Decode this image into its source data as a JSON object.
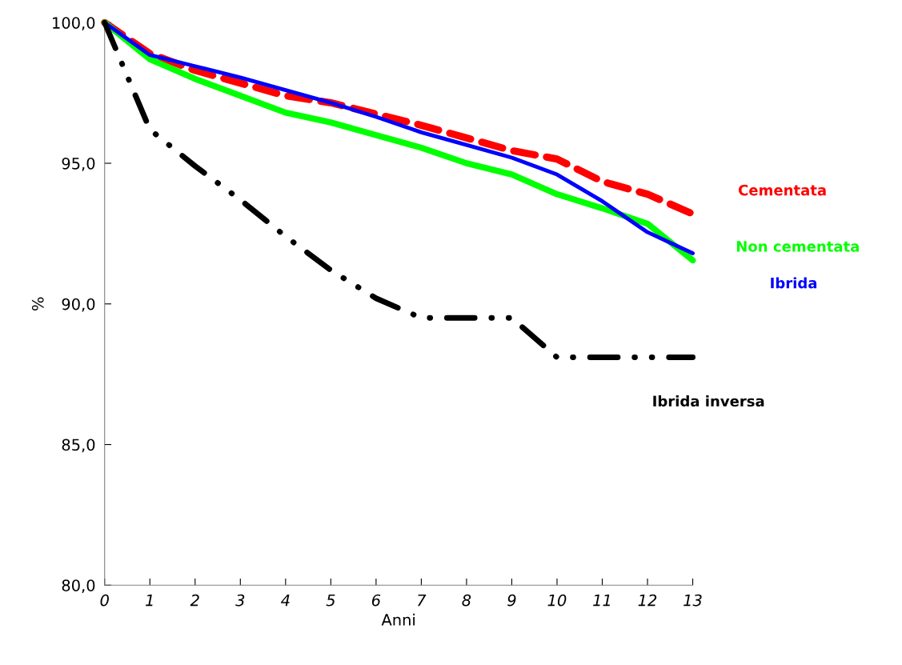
{
  "chart_data": {
    "type": "line",
    "xlabel": "Anni",
    "ylabel": "%",
    "x": [
      0,
      1,
      2,
      3,
      4,
      5,
      6,
      7,
      8,
      9,
      10,
      11,
      12,
      13
    ],
    "series": [
      {
        "name": "Cementata",
        "color": "#ff0000",
        "line_style": "dashed",
        "values": [
          100,
          98.9,
          98.3,
          97.85,
          97.4,
          97.15,
          96.75,
          96.35,
          95.9,
          95.45,
          95.15,
          94.35,
          93.9,
          93.2
        ]
      },
      {
        "name": "Non cementata",
        "color": "#00ff00",
        "line_style": "solid",
        "values": [
          100,
          98.7,
          98.0,
          97.4,
          96.8,
          96.45,
          96.0,
          95.55,
          95.0,
          94.6,
          93.9,
          93.4,
          92.85,
          91.55
        ]
      },
      {
        "name": "Ibrida",
        "color": "#0000ff",
        "line_style": "solid",
        "values": [
          100,
          98.85,
          98.45,
          98.05,
          97.6,
          97.15,
          96.65,
          96.1,
          95.65,
          95.2,
          94.6,
          93.65,
          92.55,
          91.8
        ]
      },
      {
        "name": "Ibrida inversa",
        "color": "#000000",
        "line_style": "dashdotdot",
        "values": [
          100,
          96.2,
          94.9,
          93.7,
          92.4,
          91.2,
          90.2,
          89.5,
          89.5,
          89.5,
          88.1,
          88.1,
          88.1,
          88.1
        ]
      }
    ],
    "xlim": [
      0,
      13
    ],
    "xticks": [
      0,
      1,
      2,
      3,
      4,
      5,
      6,
      7,
      8,
      9,
      10,
      11,
      12,
      13
    ],
    "ylim": [
      80,
      100
    ],
    "yticks": [
      {
        "value": 80,
        "label": "80,0"
      },
      {
        "value": 85,
        "label": "85,0"
      },
      {
        "value": 90,
        "label": "90,0"
      },
      {
        "value": 95,
        "label": "95,0"
      },
      {
        "value": 100,
        "label": "100,0"
      }
    ],
    "grid": false,
    "legend": false,
    "marker": "none"
  }
}
